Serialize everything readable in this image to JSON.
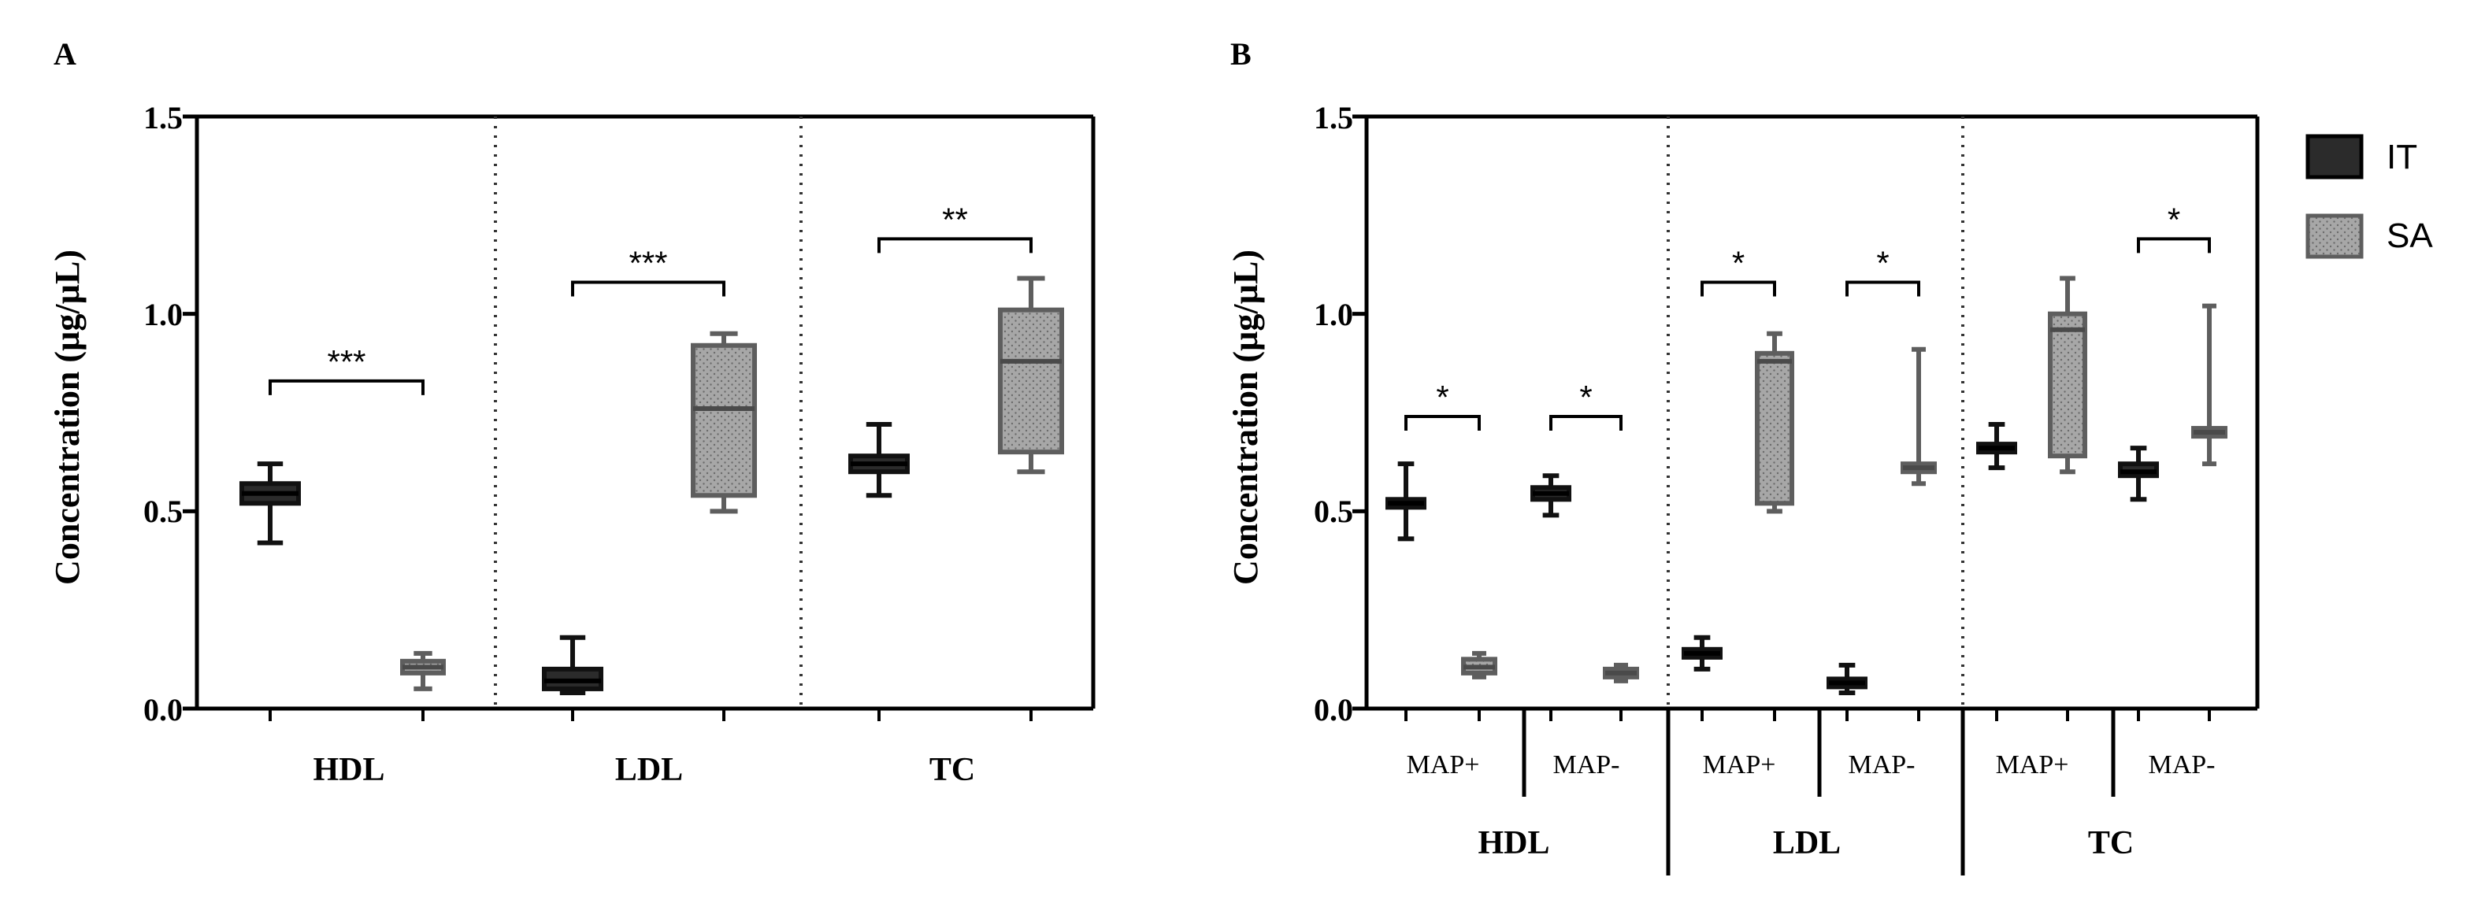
{
  "colors": {
    "it_fill": "#2b2b2b",
    "it_stroke": "#111111",
    "sa_fill": "#a7a7a7",
    "sa_stroke": "#5e5e5e",
    "axis": "#000000"
  },
  "legend": {
    "items": [
      {
        "label": "IT",
        "series": "IT"
      },
      {
        "label": "SA",
        "series": "SA"
      }
    ]
  },
  "chart_data": [
    {
      "type": "box",
      "panel_label": "A",
      "ylabel": "Concentration (µg/µL)",
      "ylim": [
        0,
        1.5
      ],
      "yticks": [
        "0.0",
        "0.5",
        "1.0",
        "1.5"
      ],
      "groups": [
        "HDL",
        "LDL",
        "TC"
      ],
      "series": [
        {
          "name": "IT",
          "boxes": [
            {
              "group": "HDL",
              "min": 0.42,
              "q1": 0.52,
              "median": 0.545,
              "q3": 0.57,
              "max": 0.62
            },
            {
              "group": "LDL",
              "min": 0.04,
              "q1": 0.05,
              "median": 0.07,
              "q3": 0.1,
              "max": 0.18
            },
            {
              "group": "TC",
              "min": 0.54,
              "q1": 0.6,
              "median": 0.62,
              "q3": 0.64,
              "max": 0.72
            }
          ]
        },
        {
          "name": "SA",
          "boxes": [
            {
              "group": "HDL",
              "min": 0.05,
              "q1": 0.09,
              "median": 0.105,
              "q3": 0.12,
              "max": 0.14
            },
            {
              "group": "LDL",
              "min": 0.5,
              "q1": 0.54,
              "median": 0.76,
              "q3": 0.92,
              "max": 0.95
            },
            {
              "group": "TC",
              "min": 0.6,
              "q1": 0.65,
              "median": 0.88,
              "q3": 1.01,
              "max": 1.09
            }
          ]
        }
      ],
      "significance": [
        {
          "group": "HDL",
          "label": "***",
          "y": 0.83
        },
        {
          "group": "LDL",
          "label": "***",
          "y": 1.08
        },
        {
          "group": "TC",
          "label": "**",
          "y": 1.19
        }
      ]
    },
    {
      "type": "box",
      "panel_label": "B",
      "ylabel": "Concentration (µg/µL)",
      "ylim": [
        0,
        1.5
      ],
      "yticks": [
        "0.0",
        "0.5",
        "1.0",
        "1.5"
      ],
      "groups": [
        "HDL",
        "LDL",
        "TC"
      ],
      "subgroups": [
        "MAP+",
        "MAP-"
      ],
      "series": [
        {
          "name": "IT",
          "boxes": [
            {
              "group": "HDL",
              "subgroup": "MAP+",
              "min": 0.43,
              "q1": 0.51,
              "median": 0.52,
              "q3": 0.53,
              "max": 0.62
            },
            {
              "group": "HDL",
              "subgroup": "MAP-",
              "min": 0.49,
              "q1": 0.53,
              "median": 0.545,
              "q3": 0.56,
              "max": 0.59
            },
            {
              "group": "LDL",
              "subgroup": "MAP+",
              "min": 0.1,
              "q1": 0.13,
              "median": 0.14,
              "q3": 0.15,
              "max": 0.18
            },
            {
              "group": "LDL",
              "subgroup": "MAP-",
              "min": 0.04,
              "q1": 0.055,
              "median": 0.065,
              "q3": 0.075,
              "max": 0.11
            },
            {
              "group": "TC",
              "subgroup": "MAP+",
              "min": 0.61,
              "q1": 0.65,
              "median": 0.66,
              "q3": 0.67,
              "max": 0.72
            },
            {
              "group": "TC",
              "subgroup": "MAP-",
              "min": 0.53,
              "q1": 0.59,
              "median": 0.6,
              "q3": 0.62,
              "max": 0.66
            }
          ]
        },
        {
          "name": "SA",
          "boxes": [
            {
              "group": "HDL",
              "subgroup": "MAP+",
              "min": 0.08,
              "q1": 0.09,
              "median": 0.105,
              "q3": 0.125,
              "max": 0.14
            },
            {
              "group": "HDL",
              "subgroup": "MAP-",
              "min": 0.07,
              "q1": 0.08,
              "median": 0.09,
              "q3": 0.1,
              "max": 0.11
            },
            {
              "group": "LDL",
              "subgroup": "MAP+",
              "min": 0.5,
              "q1": 0.52,
              "median": 0.88,
              "q3": 0.9,
              "max": 0.95
            },
            {
              "group": "LDL",
              "subgroup": "MAP-",
              "min": 0.57,
              "q1": 0.6,
              "median": 0.61,
              "q3": 0.62,
              "max": 0.91
            },
            {
              "group": "TC",
              "subgroup": "MAP+",
              "min": 0.6,
              "q1": 0.64,
              "median": 0.96,
              "q3": 1.0,
              "max": 1.09
            },
            {
              "group": "TC",
              "subgroup": "MAP-",
              "min": 0.62,
              "q1": 0.69,
              "median": 0.7,
              "q3": 0.71,
              "max": 1.02
            }
          ]
        }
      ],
      "significance": [
        {
          "group": "HDL",
          "subgroup": "MAP+",
          "label": "*",
          "y": 0.74
        },
        {
          "group": "HDL",
          "subgroup": "MAP-",
          "label": "*",
          "y": 0.74
        },
        {
          "group": "LDL",
          "subgroup": "MAP+",
          "label": "*",
          "y": 1.08
        },
        {
          "group": "LDL",
          "subgroup": "MAP-",
          "label": "*",
          "y": 1.08
        },
        {
          "group": "TC",
          "subgroup": "MAP-",
          "label": "*",
          "y": 1.19
        }
      ]
    }
  ]
}
